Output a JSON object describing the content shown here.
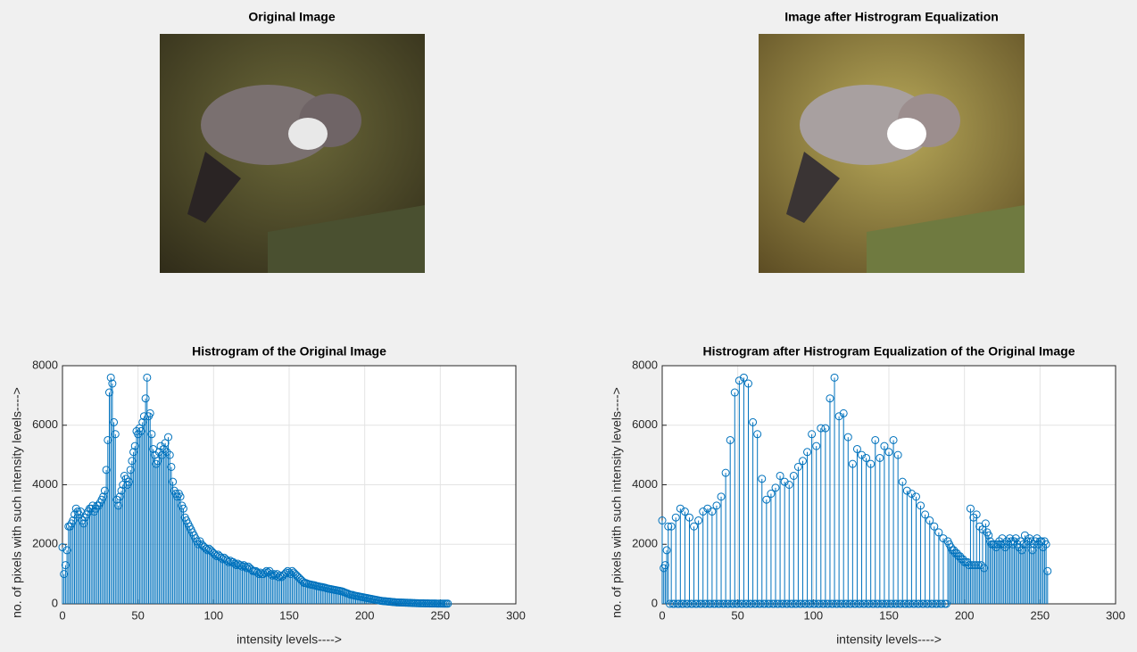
{
  "images": [
    {
      "title": "Original Image"
    },
    {
      "title": "Image after Histrogram Equalization"
    }
  ],
  "chart_data": [
    {
      "type": "stem",
      "title": "Histrogram of the Original Image",
      "xlabel": "intensity levels---->",
      "ylabel": "no. of pixels with such intensity levels---->",
      "color": "#0072bd",
      "grid": true,
      "xlim": [
        0,
        300
      ],
      "xticks": [
        0,
        50,
        100,
        150,
        200,
        250,
        300
      ],
      "ylim": [
        0,
        8000
      ],
      "yticks": [
        0,
        2000,
        4000,
        6000,
        8000
      ],
      "x": [
        0,
        1,
        2,
        3,
        4,
        5,
        6,
        7,
        8,
        9,
        10,
        11,
        12,
        13,
        14,
        15,
        16,
        17,
        18,
        19,
        20,
        21,
        22,
        23,
        24,
        25,
        26,
        27,
        28,
        29,
        30,
        31,
        32,
        33,
        34,
        35,
        36,
        37,
        38,
        39,
        40,
        41,
        42,
        43,
        44,
        45,
        46,
        47,
        48,
        49,
        50,
        51,
        52,
        53,
        54,
        55,
        56,
        57,
        58,
        59,
        60,
        61,
        62,
        63,
        64,
        65,
        66,
        67,
        68,
        69,
        70,
        71,
        72,
        73,
        74,
        75,
        76,
        77,
        78,
        79,
        80,
        81,
        82,
        83,
        84,
        85,
        86,
        87,
        88,
        89,
        90,
        91,
        92,
        93,
        94,
        95,
        96,
        97,
        98,
        99,
        100,
        101,
        102,
        103,
        104,
        105,
        106,
        107,
        108,
        109,
        110,
        111,
        112,
        113,
        114,
        115,
        116,
        117,
        118,
        119,
        120,
        121,
        122,
        123,
        124,
        125,
        126,
        127,
        128,
        129,
        130,
        131,
        132,
        133,
        134,
        135,
        136,
        137,
        138,
        139,
        140,
        141,
        142,
        143,
        144,
        145,
        146,
        147,
        148,
        149,
        150,
        151,
        152,
        153,
        154,
        155,
        156,
        157,
        158,
        159,
        160,
        161,
        162,
        163,
        164,
        165,
        166,
        167,
        168,
        169,
        170,
        171,
        172,
        173,
        174,
        175,
        176,
        177,
        178,
        179,
        180,
        181,
        182,
        183,
        184,
        185,
        186,
        187,
        188,
        189,
        190,
        191,
        192,
        193,
        194,
        195,
        196,
        197,
        198,
        199,
        200,
        201,
        202,
        203,
        204,
        205,
        206,
        207,
        208,
        209,
        210,
        211,
        212,
        213,
        214,
        215,
        216,
        217,
        218,
        219,
        220,
        221,
        222,
        223,
        224,
        225,
        226,
        227,
        228,
        229,
        230,
        231,
        232,
        233,
        234,
        235,
        236,
        237,
        238,
        239,
        240,
        241,
        242,
        243,
        244,
        245,
        246,
        247,
        248,
        249,
        250,
        251,
        252,
        253,
        254,
        255
      ],
      "values": [
        1900,
        1000,
        1300,
        1800,
        2600,
        2600,
        2700,
        2800,
        3000,
        3200,
        3100,
        3000,
        3100,
        2800,
        2700,
        2900,
        3000,
        3100,
        3200,
        3200,
        3300,
        3100,
        3200,
        3300,
        3300,
        3400,
        3500,
        3600,
        3800,
        4500,
        5500,
        7100,
        7600,
        7400,
        6100,
        5700,
        3500,
        3300,
        3600,
        3800,
        4000,
        4300,
        4200,
        4000,
        4100,
        4500,
        4800,
        5100,
        5300,
        5800,
        5700,
        5900,
        5800,
        6100,
        6300,
        6900,
        7600,
        6300,
        6400,
        5700,
        5200,
        5000,
        4700,
        4800,
        5100,
        5300,
        5000,
        5200,
        5400,
        5100,
        5600,
        5000,
        4600,
        4100,
        3800,
        3700,
        3600,
        3700,
        3600,
        3300,
        3200,
        2900,
        2800,
        2700,
        2600,
        2500,
        2400,
        2300,
        2200,
        2100,
        2000,
        2100,
        2000,
        1950,
        1900,
        1850,
        1800,
        1850,
        1800,
        1750,
        1700,
        1650,
        1600,
        1650,
        1600,
        1550,
        1500,
        1550,
        1500,
        1450,
        1400,
        1450,
        1400,
        1400,
        1350,
        1300,
        1350,
        1300,
        1300,
        1250,
        1300,
        1250,
        1200,
        1250,
        1200,
        1150,
        1100,
        1100,
        1100,
        1050,
        1000,
        1050,
        1000,
        1000,
        1050,
        1100,
        1050,
        1100,
        1000,
        950,
        1000,
        950,
        1000,
        900,
        950,
        900,
        950,
        1000,
        1050,
        1100,
        1050,
        1000,
        1100,
        1050,
        1000,
        950,
        900,
        850,
        800,
        750,
        700,
        700,
        680,
        660,
        650,
        640,
        630,
        620,
        600,
        590,
        580,
        570,
        560,
        550,
        540,
        520,
        510,
        500,
        490,
        480,
        470,
        460,
        450,
        440,
        430,
        420,
        400,
        380,
        360,
        340,
        320,
        300,
        300,
        280,
        270,
        260,
        250,
        240,
        230,
        220,
        210,
        200,
        190,
        180,
        170,
        160,
        150,
        140,
        130,
        120,
        110,
        100,
        95,
        90,
        85,
        80,
        75,
        70,
        65,
        60,
        55,
        50,
        48,
        46,
        44,
        42,
        40,
        38,
        36,
        34,
        32,
        30,
        28,
        26,
        24,
        22,
        20,
        19,
        18,
        17,
        16,
        15,
        14,
        13,
        12,
        11,
        10,
        10,
        9,
        9,
        8,
        8,
        7,
        7,
        6,
        6
      ]
    },
    {
      "type": "stem",
      "title": "Histrogram after Histrogram Equalization of the Original Image",
      "xlabel": "intensity levels---->",
      "ylabel": "no. of pixels with such intensity levels---->",
      "color": "#0072bd",
      "grid": true,
      "xlim": [
        0,
        300
      ],
      "xticks": [
        0,
        50,
        100,
        150,
        200,
        250,
        300
      ],
      "ylim": [
        0,
        8000
      ],
      "yticks": [
        0,
        2000,
        4000,
        6000,
        8000
      ],
      "x": [
        0,
        1,
        2,
        3,
        4,
        5,
        6,
        7,
        8,
        9,
        10,
        11,
        12,
        13,
        14,
        15,
        16,
        17,
        18,
        19,
        20,
        21,
        22,
        23,
        24,
        25,
        26,
        27,
        28,
        29,
        30,
        31,
        32,
        33,
        34,
        35,
        36,
        37,
        38,
        39,
        40,
        41,
        42,
        43,
        44,
        45,
        46,
        47,
        48,
        49,
        50,
        51,
        52,
        53,
        54,
        55,
        56,
        57,
        58,
        59,
        60,
        61,
        62,
        63,
        64,
        65,
        66,
        67,
        68,
        69,
        70,
        71,
        72,
        73,
        74,
        75,
        76,
        77,
        78,
        79,
        80,
        81,
        82,
        83,
        84,
        85,
        86,
        87,
        88,
        89,
        90,
        91,
        92,
        93,
        94,
        95,
        96,
        97,
        98,
        99,
        100,
        101,
        102,
        103,
        104,
        105,
        106,
        107,
        108,
        109,
        110,
        111,
        112,
        113,
        114,
        115,
        116,
        117,
        118,
        119,
        120,
        121,
        122,
        123,
        124,
        125,
        126,
        127,
        128,
        129,
        130,
        131,
        132,
        133,
        134,
        135,
        136,
        137,
        138,
        139,
        140,
        141,
        142,
        143,
        144,
        145,
        146,
        147,
        148,
        149,
        150,
        151,
        152,
        153,
        154,
        155,
        156,
        157,
        158,
        159,
        160,
        161,
        162,
        163,
        164,
        165,
        166,
        167,
        168,
        169,
        170,
        171,
        172,
        173,
        174,
        175,
        176,
        177,
        178,
        179,
        180,
        181,
        182,
        183,
        184,
        185,
        186,
        187,
        188,
        189,
        190,
        191,
        192,
        193,
        194,
        195,
        196,
        197,
        198,
        199,
        200,
        201,
        202,
        203,
        204,
        205,
        206,
        207,
        208,
        209,
        210,
        211,
        212,
        213,
        214,
        215,
        216,
        217,
        218,
        219,
        220,
        221,
        222,
        223,
        224,
        225,
        226,
        227,
        228,
        229,
        230,
        231,
        232,
        233,
        234,
        235,
        236,
        237,
        238,
        239,
        240,
        241,
        242,
        243,
        244,
        245,
        246,
        247,
        248,
        249,
        250,
        251,
        252,
        253,
        254,
        255
      ],
      "values": [
        2800,
        1200,
        1300,
        1800,
        2600,
        0,
        2600,
        0,
        0,
        2900,
        0,
        0,
        3200,
        0,
        0,
        3100,
        0,
        0,
        2900,
        0,
        0,
        2600,
        0,
        0,
        2800,
        0,
        0,
        3100,
        0,
        0,
        3200,
        0,
        0,
        3100,
        0,
        0,
        3300,
        0,
        0,
        3600,
        0,
        0,
        4400,
        0,
        0,
        5500,
        0,
        0,
        7100,
        0,
        0,
        7500,
        0,
        0,
        7600,
        0,
        0,
        7400,
        0,
        0,
        6100,
        0,
        0,
        5700,
        0,
        0,
        4200,
        0,
        0,
        3500,
        0,
        0,
        3700,
        0,
        0,
        3900,
        0,
        0,
        4300,
        0,
        0,
        4100,
        0,
        0,
        4000,
        0,
        0,
        4300,
        0,
        0,
        4600,
        0,
        0,
        4800,
        0,
        0,
        5100,
        0,
        0,
        5700,
        0,
        0,
        5300,
        0,
        0,
        5900,
        0,
        0,
        5900,
        0,
        0,
        6900,
        0,
        0,
        7600,
        0,
        0,
        6300,
        0,
        0,
        6400,
        0,
        0,
        5600,
        0,
        0,
        4700,
        0,
        0,
        5200,
        0,
        0,
        5000,
        0,
        0,
        4900,
        0,
        0,
        4700,
        0,
        0,
        5500,
        0,
        0,
        4900,
        0,
        0,
        5300,
        0,
        0,
        5100,
        0,
        0,
        5500,
        0,
        0,
        5000,
        0,
        0,
        4100,
        0,
        0,
        3800,
        0,
        0,
        3700,
        0,
        0,
        3600,
        0,
        0,
        3300,
        0,
        0,
        3000,
        0,
        0,
        2800,
        0,
        0,
        2600,
        0,
        0,
        2400,
        0,
        0,
        2200,
        0,
        0,
        2100,
        2000,
        1900,
        1800,
        1800,
        1700,
        1700,
        1600,
        1600,
        1500,
        1500,
        1400,
        1400,
        1400,
        1300,
        3200,
        1300,
        2900,
        1300,
        3000,
        1300,
        2600,
        1300,
        2500,
        1200,
        2700,
        2400,
        2300,
        2100,
        2000,
        2000,
        2000,
        1900,
        2000,
        2100,
        2000,
        2200,
        2000,
        1900,
        2100,
        2000,
        2200,
        2100,
        2000,
        2100,
        2200,
        2000,
        1900,
        2100,
        1800,
        2000,
        2300,
        2000,
        2100,
        2200,
        2100,
        1800,
        2000,
        2100,
        2200,
        2000,
        2100,
        2100,
        1900,
        2100,
        2000,
        1100
      ]
    }
  ]
}
